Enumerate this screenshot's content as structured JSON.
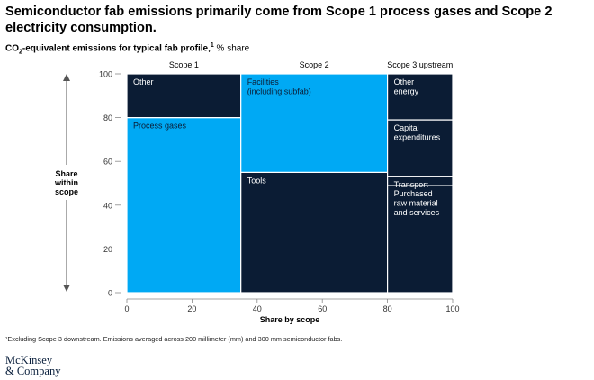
{
  "title": "Semiconductor fab emissions primarily come from Scope 1 process gases and Scope 2 electricity consumption.",
  "subtitle": {
    "main_a": "CO",
    "main_sub": "2",
    "main_b": "-equivalent emissions for typical fab profile,",
    "footnote_ref": "1",
    "suffix": " % share"
  },
  "footnote": "¹Excluding Scope 3 downstream. Emissions averaged across 200 millimeter (mm) and 300 mm semiconductor fabs.",
  "logo": {
    "line1": "McKinsey",
    "line2": "& Company"
  },
  "colors": {
    "dark": "#0b1c34",
    "light": "#00a9f4",
    "axis": "#555555"
  },
  "chart_data": {
    "type": "marimekko",
    "title": "CO2-equivalent emissions for typical fab profile, % share",
    "xlabel": "Share by scope",
    "ylabel": "Share within scope",
    "xlim": [
      0,
      100
    ],
    "ylim": [
      0,
      100
    ],
    "x_ticks": [
      "0",
      "20",
      "40",
      "60",
      "80",
      "100"
    ],
    "y_ticks": [
      "0",
      "20",
      "40",
      "60",
      "80",
      "100"
    ],
    "columns": [
      {
        "name": "Scope 1",
        "x_start": 0,
        "width": 35,
        "segments": [
          {
            "label": "Process gases",
            "lines": [
              "Process gases"
            ],
            "value": 80,
            "color": "light"
          },
          {
            "label": "Other",
            "lines": [
              "Other"
            ],
            "value": 20,
            "color": "dark"
          }
        ]
      },
      {
        "name": "Scope 2",
        "x_start": 35,
        "width": 45,
        "segments": [
          {
            "label": "Tools",
            "lines": [
              "Tools"
            ],
            "value": 55,
            "color": "dark"
          },
          {
            "label": "Facilities (including subfab)",
            "lines": [
              "Facilities",
              "(including subfab)"
            ],
            "value": 45,
            "color": "light"
          }
        ]
      },
      {
        "name": "Scope 3 upstream",
        "x_start": 80,
        "width": 20,
        "segments": [
          {
            "label": "Purchased raw material and services",
            "lines": [
              "Purchased",
              "raw material",
              "and services"
            ],
            "value": 49,
            "color": "dark"
          },
          {
            "label": "Transport",
            "lines": [
              "Transport"
            ],
            "value": 4,
            "color": "dark"
          },
          {
            "label": "Capital expenditures",
            "lines": [
              "Capital",
              "expenditures"
            ],
            "value": 26,
            "color": "dark"
          },
          {
            "label": "Other energy",
            "lines": [
              "Other",
              "energy"
            ],
            "value": 21,
            "color": "dark"
          }
        ]
      }
    ]
  }
}
